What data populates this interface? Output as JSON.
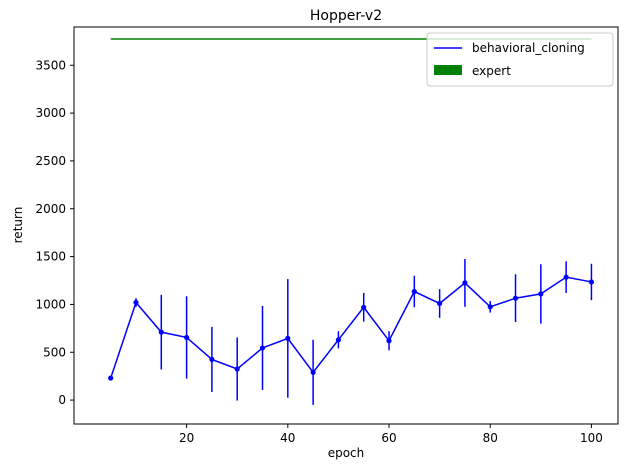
{
  "chart_data": {
    "type": "line",
    "title": "Hopper-v2",
    "xlabel": "epoch",
    "ylabel": "return",
    "xlim": [
      -2.25,
      105.25
    ],
    "ylim": [
      -250,
      3900
    ],
    "xticks": [
      20,
      40,
      60,
      80,
      100
    ],
    "yticks": [
      0,
      500,
      1000,
      1500,
      2000,
      2500,
      3000,
      3500
    ],
    "grid": false,
    "legend_position": "top-right",
    "series": [
      {
        "name": "behavioral_cloning",
        "color": "#0000ff",
        "x": [
          5,
          10,
          15,
          20,
          25,
          30,
          35,
          40,
          45,
          50,
          55,
          60,
          65,
          70,
          75,
          80,
          85,
          90,
          95,
          100
        ],
        "values": [
          230,
          1020,
          710,
          655,
          425,
          325,
          545,
          645,
          290,
          630,
          970,
          620,
          1135,
          1010,
          1225,
          975,
          1065,
          1110,
          1285,
          1235
        ],
        "errors": [
          10,
          45,
          390,
          430,
          340,
          330,
          440,
          620,
          340,
          90,
          150,
          100,
          165,
          150,
          250,
          60,
          250,
          310,
          165,
          190
        ]
      },
      {
        "name": "expert",
        "color": "#008000",
        "type": "hline",
        "x_range": [
          5,
          100
        ],
        "value": 3775
      }
    ]
  }
}
